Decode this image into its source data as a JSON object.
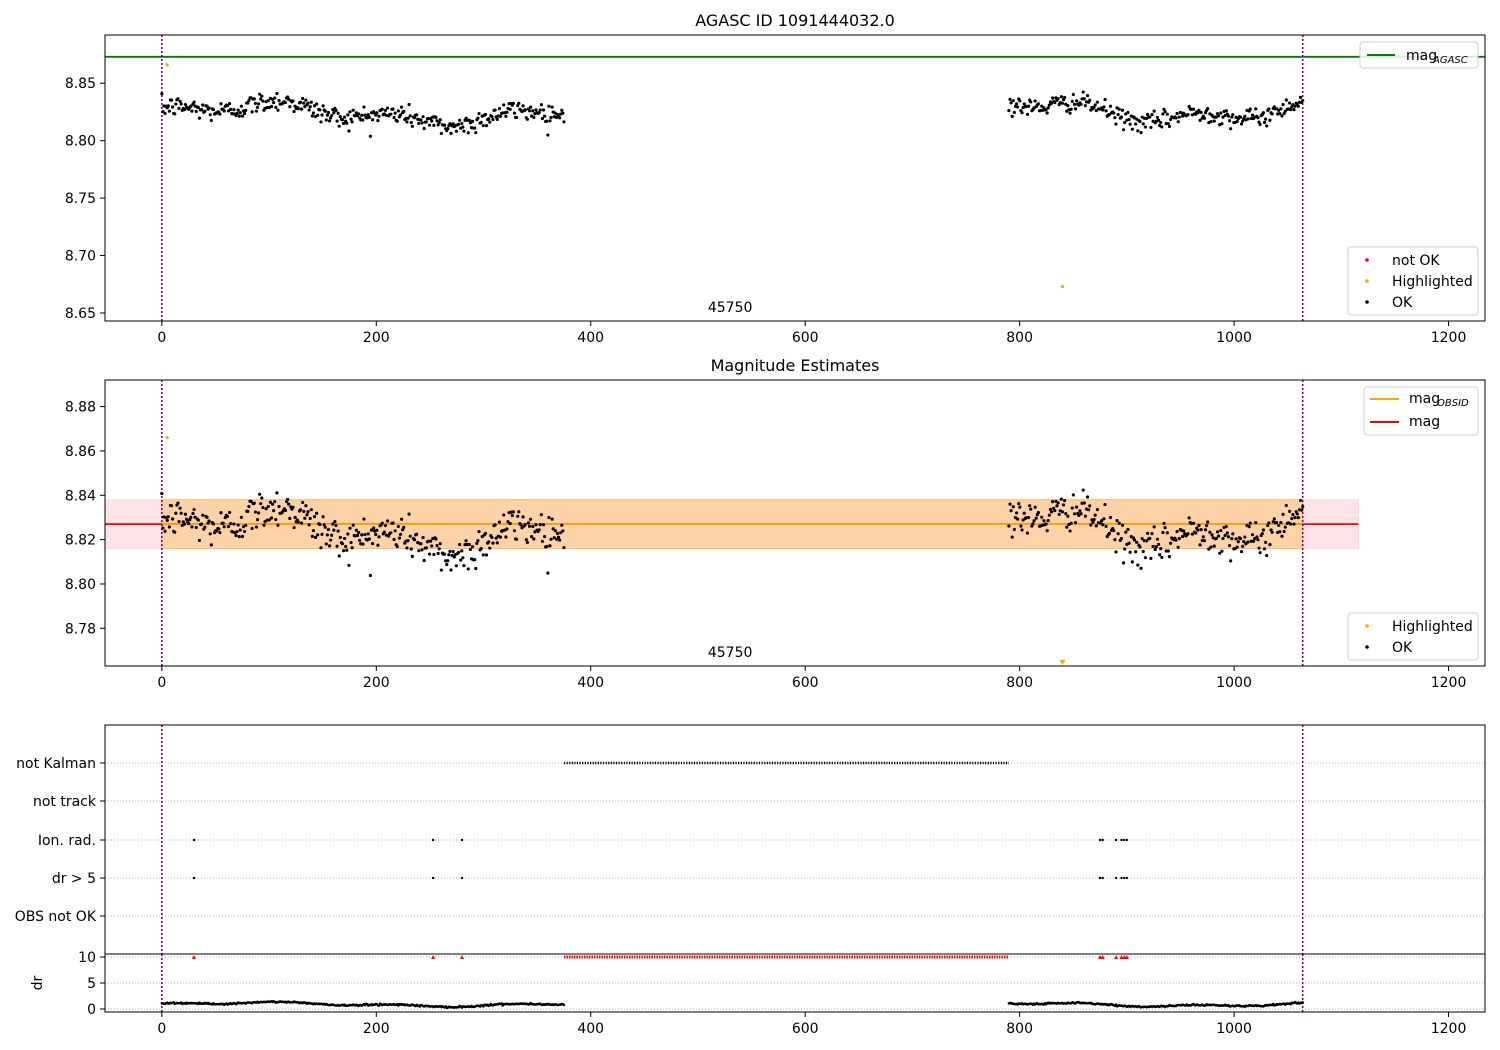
{
  "chart_data": [
    {
      "type": "scatter",
      "title": "AGASC ID 1091444032.0",
      "xlim": [
        -53,
        1234
      ],
      "ylim": [
        8.643,
        8.892
      ],
      "x_ticks": [
        0,
        200,
        400,
        600,
        800,
        1000,
        1200
      ],
      "y_ticks": [
        8.65,
        8.7,
        8.75,
        8.8,
        8.85
      ],
      "y_tick_labels": [
        "8.65",
        "8.70",
        "8.75",
        "8.80",
        "8.85"
      ],
      "grid": false,
      "obsid_label": "45750",
      "obsid_label_x": 530,
      "obs_boundaries": [
        0,
        1064
      ],
      "reference_lines": [
        {
          "name": "mag_AGASC",
          "value": 8.873,
          "color": "#008000"
        }
      ],
      "series": [
        {
          "name": "not OK",
          "color": "#ff0000",
          "points": []
        },
        {
          "name": "Highlighted",
          "color": "#ffa500",
          "points": [
            [
              5,
              8.866
            ],
            [
              840,
              8.673
            ]
          ]
        },
        {
          "name": "OK",
          "color": "#000000",
          "segments": [
            {
              "x_start": 0,
              "x_end": 375,
              "n": 375,
              "base": 8.824,
              "wave": 0.009,
              "noise": 0.009
            },
            {
              "x_start": 790,
              "x_end": 1064,
              "n": 270,
              "base": 8.827,
              "wave": 0.01,
              "noise": 0.008
            }
          ]
        }
      ],
      "legend_upper": {
        "entries": [
          {
            "label": "mag",
            "sub": "AGASC",
            "color": "#008000"
          }
        ],
        "placement": "top-right"
      },
      "legend_lower": {
        "entries": [
          {
            "label": "not OK",
            "color": "#ff0000"
          },
          {
            "label": "Highlighted",
            "color": "#ffa500"
          },
          {
            "label": "OK",
            "color": "#000000"
          }
        ],
        "placement": "bottom-right"
      }
    },
    {
      "type": "scatter",
      "title": "Magnitude Estimates",
      "xlim": [
        -53,
        1234
      ],
      "ylim": [
        8.763,
        8.892
      ],
      "x_ticks": [
        0,
        200,
        400,
        600,
        800,
        1000,
        1200
      ],
      "y_ticks": [
        8.78,
        8.8,
        8.82,
        8.84,
        8.86,
        8.88
      ],
      "y_tick_labels": [
        "8.78",
        "8.80",
        "8.82",
        "8.84",
        "8.86",
        "8.88"
      ],
      "grid": false,
      "obsid_label": "45750",
      "obsid_label_x": 530,
      "obs_boundaries": [
        0,
        1064
      ],
      "reference_lines": [
        {
          "name": "mag",
          "value": 8.827,
          "color": "#ff0000",
          "x_range": [
            -53,
            1116
          ]
        },
        {
          "name": "mag_OBSID",
          "value": 8.827,
          "color": "#ffa500",
          "x_range": [
            0,
            1064
          ]
        }
      ],
      "bands": [
        {
          "name": "mag",
          "low": 8.816,
          "high": 8.838,
          "color": "#ffc0cb",
          "x_range": [
            -53,
            1116
          ]
        },
        {
          "name": "mag_OBSID",
          "low": 8.816,
          "high": 8.838,
          "color": "#ffa500",
          "x_range": [
            0,
            1064
          ]
        }
      ],
      "series": [
        {
          "name": "Highlighted",
          "color": "#ffa500",
          "points": [
            [
              5,
              8.866
            ]
          ],
          "offscale_markers": [
            [
              840,
              8.763
            ]
          ]
        },
        {
          "name": "OK",
          "color": "#000000",
          "same_as_panel": 0
        }
      ],
      "legend_upper": {
        "entries": [
          {
            "label": "mag",
            "sub": "OBSID",
            "color": "#ffa500"
          },
          {
            "label": "mag",
            "sub": "",
            "color": "#ff0000"
          }
        ],
        "placement": "top-right"
      },
      "legend_lower": {
        "entries": [
          {
            "label": "Highlighted",
            "color": "#ffa500"
          },
          {
            "label": "OK",
            "color": "#000000"
          }
        ],
        "placement": "bottom-right"
      }
    },
    {
      "type": "scatter",
      "title": "",
      "xlim": [
        -53,
        1234
      ],
      "categories": [
        "not Kalman",
        "not track",
        "Ion. rad.",
        "dr > 5",
        "OBS not OK"
      ],
      "grid": true,
      "obs_boundaries": [
        0,
        1064
      ],
      "flag_ranges": {
        "not Kalman": [
          [
            375,
            790
          ]
        ],
        "not track": [],
        "Ion. rad.": [
          [
            30,
            30
          ],
          [
            253,
            253
          ],
          [
            280,
            280
          ],
          [
            875,
            878
          ],
          [
            890,
            891
          ],
          [
            895,
            900
          ]
        ],
        "dr > 5": [
          [
            30,
            30
          ],
          [
            253,
            253
          ],
          [
            280,
            280
          ],
          [
            875,
            878
          ],
          [
            890,
            891
          ],
          [
            895,
            900
          ]
        ],
        "OBS not OK": []
      }
    },
    {
      "type": "scatter",
      "title": "",
      "xlim": [
        -53,
        1234
      ],
      "ylim": [
        0,
        10
      ],
      "ylabel": "dr",
      "x_ticks": [
        0,
        200,
        400,
        600,
        800,
        1000,
        1200
      ],
      "y_ticks": [
        0,
        5,
        10
      ],
      "y_tick_labels": [
        "0",
        "5",
        "10"
      ],
      "grid": true,
      "obs_boundaries": [
        0,
        1064
      ],
      "series": [
        {
          "name": "dr",
          "color": "#000000",
          "segments": [
            {
              "x_start": 0,
              "x_end": 375,
              "n": 375,
              "base": 0.9,
              "wave": 0.4,
              "noise": 0.15
            },
            {
              "x_start": 790,
              "x_end": 1064,
              "n": 270,
              "base": 0.9,
              "wave": 0.4,
              "noise": 0.15
            }
          ]
        },
        {
          "name": "dr > 10",
          "color": "#ff0000",
          "clipped_at": 10,
          "ranges": [
            [
              375,
              790
            ],
            [
              30,
              30
            ],
            [
              253,
              253
            ],
            [
              280,
              280
            ],
            [
              875,
              878
            ],
            [
              890,
              891
            ],
            [
              895,
              900
            ]
          ]
        }
      ]
    }
  ]
}
